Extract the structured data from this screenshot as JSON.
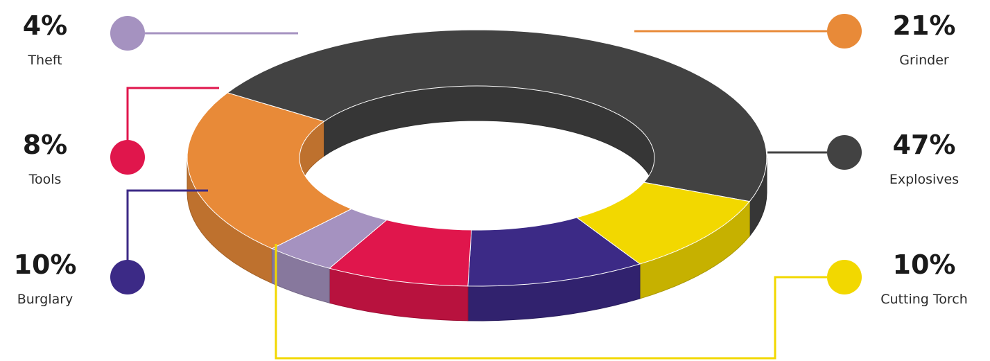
{
  "chart_data": {
    "type": "pie",
    "variant": "3d-donut",
    "title": "",
    "categories": [
      "Grinder",
      "Explosives",
      "Cutting Torch",
      "Burglary",
      "Tools",
      "Theft"
    ],
    "values": [
      21,
      47,
      10,
      10,
      8,
      4
    ],
    "labels": [
      "21%",
      "47%",
      "10%",
      "10%",
      "8%",
      "4%"
    ],
    "colors": [
      "#e88a38",
      "#424242",
      "#f2d800",
      "#3c2a86",
      "#e0164c",
      "#a592c0"
    ],
    "legend": "callouts-both-sides"
  }
}
